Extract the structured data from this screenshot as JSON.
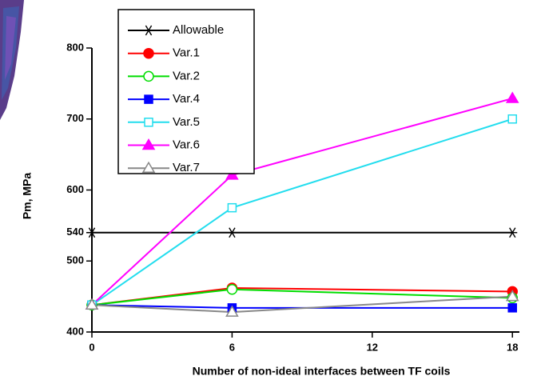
{
  "chart_data": {
    "type": "line",
    "x_label": "Number of non-ideal interfaces between TF coils",
    "y_label": "Pm, MPa",
    "x": [
      0,
      6,
      18
    ],
    "xlim": [
      0,
      18.3
    ],
    "xticks": [
      0,
      6,
      12,
      18
    ],
    "ylim": [
      400,
      800
    ],
    "yticks": [
      400,
      500,
      540,
      600,
      700,
      800
    ],
    "legend": "upper-left",
    "series": [
      {
        "name": "Allowable",
        "color": "#000000",
        "marker": "asterisk",
        "values": [
          540,
          540,
          540
        ]
      },
      {
        "name": "Var.1",
        "color": "#ff0000",
        "marker": "circle-filled",
        "values": [
          438,
          462,
          457
        ]
      },
      {
        "name": "Var.2",
        "color": "#00dd00",
        "marker": "circle-open",
        "values": [
          438,
          460,
          448
        ]
      },
      {
        "name": "Var.4",
        "color": "#0000ff",
        "marker": "square-filled",
        "values": [
          438,
          434,
          434
        ]
      },
      {
        "name": "Var.5",
        "color": "#22ddee",
        "marker": "square-open",
        "values": [
          438,
          575,
          700
        ]
      },
      {
        "name": "Var.6",
        "color": "#ff00ff",
        "marker": "triangle-filled",
        "values": [
          438,
          621,
          729
        ]
      },
      {
        "name": "Var.7",
        "color": "#888888",
        "marker": "triangle-open",
        "values": [
          438,
          428,
          450
        ]
      }
    ]
  }
}
